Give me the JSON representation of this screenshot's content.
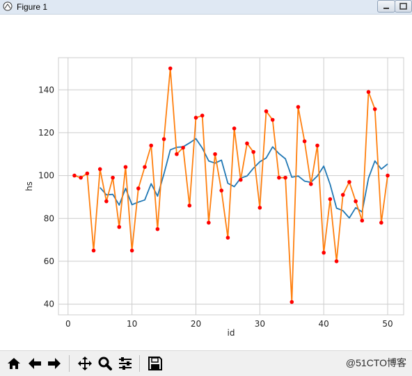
{
  "window": {
    "title": "Figure 1"
  },
  "watermark": "@51CTO博客",
  "toolbar": {
    "buttons": [
      "home-icon",
      "back-arrow-icon",
      "forward-arrow-icon",
      "pan-icon",
      "zoom-icon",
      "subplots-config-icon",
      "save-icon"
    ]
  },
  "colors": {
    "series_mean": "#1f77b4",
    "series_hs": "#ff7f0e",
    "markers": "#ff0000",
    "grid": "#cccccc",
    "axes_bg": "#ffffff"
  },
  "chart_data": {
    "type": "line",
    "title": "",
    "xlabel": "id",
    "ylabel": "hs",
    "xlim": [
      -1.5,
      52.5
    ],
    "ylim": [
      35,
      155
    ],
    "xticks": [
      0,
      10,
      20,
      30,
      40,
      50
    ],
    "yticks": [
      40,
      60,
      80,
      100,
      120,
      140
    ],
    "grid": true,
    "legend": "none",
    "series": [
      {
        "x": [
          1,
          2,
          3,
          4,
          5,
          6,
          7,
          8,
          9,
          10,
          11,
          12,
          13,
          14,
          15,
          16,
          17,
          18,
          19,
          20,
          21,
          22,
          23,
          24,
          25,
          26,
          27,
          28,
          29,
          30,
          31,
          32,
          33,
          34,
          35,
          36,
          37,
          38,
          39,
          40,
          41,
          42,
          43,
          44,
          45,
          46,
          47,
          48,
          49,
          50
        ],
        "values": [
          100,
          99,
          101,
          65,
          103,
          88,
          99,
          76,
          104,
          65,
          94,
          104,
          114,
          75,
          117,
          150,
          110,
          113,
          86,
          127,
          128,
          78,
          110,
          93,
          71,
          122,
          98,
          115,
          111,
          85,
          130,
          126,
          99,
          99,
          41,
          132,
          116,
          96,
          114,
          64,
          89,
          60,
          91,
          97,
          88,
          79,
          139,
          131,
          78,
          100
        ],
        "markers": true
      },
      {
        "x": [
          5,
          6,
          7,
          8,
          9,
          10,
          11,
          12,
          13,
          14,
          15,
          16,
          17,
          18,
          19,
          20,
          21,
          22,
          23,
          24,
          25,
          26,
          27,
          28,
          29,
          30,
          31,
          32,
          33,
          34,
          35,
          36,
          37,
          38,
          39,
          40,
          41,
          42,
          43,
          44,
          45,
          46,
          47,
          48,
          49,
          50
        ],
        "values": [
          94.4,
          91.0,
          91.2,
          86.2,
          94.0,
          86.4,
          87.6,
          88.6,
          96.2,
          90.4,
          100.8,
          112.0,
          113.2,
          113.4,
          115.2,
          117.2,
          112.8,
          106.8,
          105.8,
          107.2,
          96.4,
          94.8,
          98.8,
          99.8,
          103.4,
          106.4,
          108.2,
          113.4,
          110.2,
          107.8,
          99.2,
          99.8,
          97.4,
          96.8,
          99.8,
          104.4,
          95.8,
          84.8,
          83.6,
          80.2,
          85.0,
          83.0,
          98.8,
          106.8,
          103.0,
          105.4
        ],
        "markers": false
      }
    ]
  }
}
